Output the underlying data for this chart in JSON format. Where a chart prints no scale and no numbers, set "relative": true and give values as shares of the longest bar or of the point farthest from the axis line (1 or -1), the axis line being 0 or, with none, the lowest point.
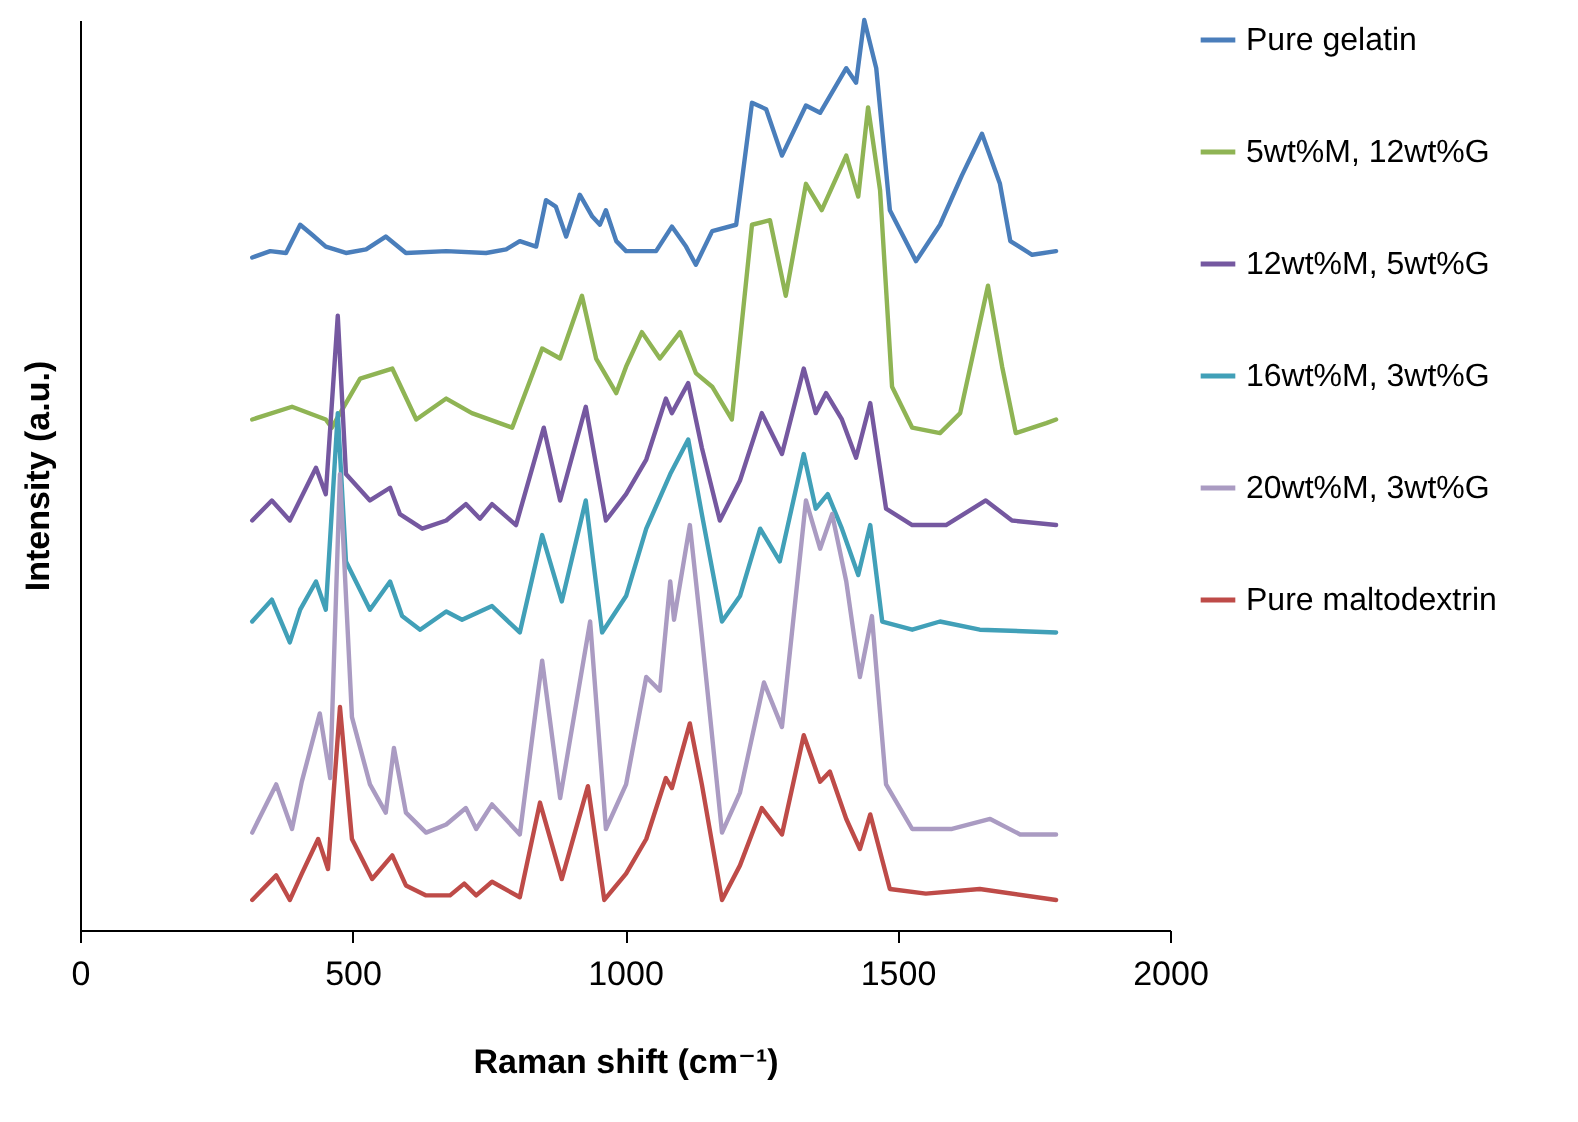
{
  "chart_data": {
    "type": "line",
    "relative": true,
    "xlabel": "Raman shift (cm⁻¹)",
    "ylabel": "Intensity (a.u.)",
    "xlim": [
      0,
      2000
    ],
    "xticks": [
      0,
      500,
      1000,
      1500,
      2000
    ],
    "legend": "right",
    "series": [
      {
        "name": "Pure gelatin",
        "color": "#4a7ebb",
        "x": [
          316,
          349,
          378,
          404,
          426,
          451,
          488,
          525,
          561,
          598,
          672,
          745,
          782,
          807,
          837,
          855,
          873,
          892,
          917,
          940,
          954,
          965,
          984,
          1002,
          1057,
          1086,
          1112,
          1130,
          1160,
          1204,
          1233,
          1259,
          1288,
          1332,
          1358,
          1406,
          1424,
          1439,
          1461,
          1486,
          1534,
          1578,
          1618,
          1655,
          1688,
          1707,
          1747,
          1791
        ],
        "values": [
          0.739,
          0.746,
          0.744,
          0.775,
          0.764,
          0.751,
          0.744,
          0.748,
          0.762,
          0.744,
          0.746,
          0.744,
          0.748,
          0.757,
          0.751,
          0.802,
          0.795,
          0.762,
          0.808,
          0.784,
          0.775,
          0.791,
          0.757,
          0.746,
          0.746,
          0.773,
          0.751,
          0.731,
          0.768,
          0.775,
          0.909,
          0.902,
          0.851,
          0.906,
          0.898,
          0.947,
          0.931,
          1,
          0.947,
          0.791,
          0.735,
          0.775,
          0.829,
          0.875,
          0.82,
          0.757,
          0.742,
          0.746
        ]
      },
      {
        "name": "5wt%M, 12wt%G",
        "color": "#8fb454",
        "x": [
          316,
          389,
          451,
          462,
          514,
          573,
          617,
          672,
          719,
          793,
          848,
          881,
          921,
          947,
          984,
          1002,
          1031,
          1064,
          1101,
          1130,
          1160,
          1196,
          1233,
          1266,
          1295,
          1332,
          1361,
          1406,
          1428,
          1446,
          1468,
          1490,
          1527,
          1578,
          1615,
          1666,
          1692,
          1717,
          1773,
          1791
        ],
        "values": [
          0.561,
          0.575,
          0.561,
          0.552,
          0.606,
          0.617,
          0.561,
          0.584,
          0.568,
          0.552,
          0.639,
          0.628,
          0.697,
          0.628,
          0.59,
          0.619,
          0.657,
          0.628,
          0.657,
          0.612,
          0.597,
          0.561,
          0.775,
          0.78,
          0.697,
          0.82,
          0.791,
          0.851,
          0.806,
          0.904,
          0.813,
          0.597,
          0.552,
          0.546,
          0.568,
          0.708,
          0.619,
          0.546,
          0.557,
          0.561
        ]
      },
      {
        "name": "12wt%M, 5wt%G",
        "color": "#7558a0",
        "x": [
          316,
          352,
          385,
          433,
          451,
          473,
          488,
          532,
          569,
          587,
          628,
          672,
          708,
          734,
          756,
          800,
          851,
          881,
          928,
          965,
          1002,
          1039,
          1075,
          1086,
          1116,
          1141,
          1174,
          1211,
          1251,
          1288,
          1328,
          1350,
          1369,
          1398,
          1424,
          1450,
          1479,
          1527,
          1589,
          1662,
          1710,
          1791
        ],
        "values": [
          0.45,
          0.472,
          0.45,
          0.508,
          0.479,
          0.675,
          0.501,
          0.472,
          0.486,
          0.457,
          0.441,
          0.45,
          0.468,
          0.452,
          0.468,
          0.445,
          0.552,
          0.472,
          0.575,
          0.45,
          0.479,
          0.517,
          0.584,
          0.568,
          0.601,
          0.53,
          0.45,
          0.494,
          0.568,
          0.523,
          0.617,
          0.568,
          0.59,
          0.561,
          0.519,
          0.579,
          0.463,
          0.445,
          0.445,
          0.472,
          0.45,
          0.445
        ]
      },
      {
        "name": "16wt%M, 3wt%G",
        "color": "#41a0b8",
        "x": [
          316,
          352,
          385,
          404,
          433,
          451,
          473,
          488,
          532,
          569,
          591,
          624,
          672,
          701,
          756,
          807,
          848,
          884,
          928,
          958,
          1002,
          1039,
          1083,
          1116,
          1141,
          1178,
          1211,
          1248,
          1284,
          1328,
          1350,
          1372,
          1398,
          1428,
          1450,
          1472,
          1527,
          1578,
          1651,
          1791
        ],
        "values": [
          0.339,
          0.363,
          0.316,
          0.352,
          0.383,
          0.352,
          0.568,
          0.405,
          0.352,
          0.383,
          0.345,
          0.33,
          0.35,
          0.341,
          0.356,
          0.327,
          0.434,
          0.361,
          0.472,
          0.327,
          0.367,
          0.441,
          0.501,
          0.539,
          0.457,
          0.339,
          0.367,
          0.441,
          0.405,
          0.523,
          0.463,
          0.479,
          0.441,
          0.39,
          0.445,
          0.339,
          0.33,
          0.339,
          0.33,
          0.327
        ]
      },
      {
        "name": "20wt%M, 3wt%G",
        "color": "#aa9bc2",
        "x": [
          316,
          360,
          389,
          407,
          440,
          459,
          477,
          499,
          532,
          561,
          576,
          598,
          635,
          672,
          708,
          727,
          756,
          807,
          848,
          881,
          936,
          965,
          1002,
          1039,
          1064,
          1083,
          1090,
          1119,
          1141,
          1178,
          1211,
          1255,
          1288,
          1332,
          1358,
          1380,
          1406,
          1431,
          1453,
          1479,
          1527,
          1600,
          1670,
          1725,
          1791
        ],
        "values": [
          0.107,
          0.16,
          0.111,
          0.163,
          0.238,
          0.167,
          0.501,
          0.234,
          0.16,
          0.129,
          0.2,
          0.129,
          0.107,
          0.116,
          0.134,
          0.111,
          0.138,
          0.105,
          0.296,
          0.145,
          0.339,
          0.111,
          0.16,
          0.278,
          0.263,
          0.383,
          0.341,
          0.445,
          0.323,
          0.107,
          0.151,
          0.272,
          0.223,
          0.472,
          0.419,
          0.457,
          0.383,
          0.278,
          0.345,
          0.16,
          0.111,
          0.111,
          0.122,
          0.105,
          0.105
        ]
      },
      {
        "name": "Pure maltodextrin",
        "color": "#be4b48",
        "x": [
          316,
          360,
          385,
          407,
          437,
          455,
          477,
          499,
          536,
          573,
          598,
          635,
          679,
          705,
          727,
          756,
          807,
          844,
          884,
          932,
          962,
          1002,
          1039,
          1075,
          1086,
          1119,
          1141,
          1178,
          1211,
          1251,
          1288,
          1328,
          1358,
          1376,
          1406,
          1431,
          1450,
          1486,
          1552,
          1651,
          1791
        ],
        "values": [
          0.033,
          0.06,
          0.033,
          0.062,
          0.1,
          0.067,
          0.245,
          0.1,
          0.056,
          0.082,
          0.049,
          0.038,
          0.038,
          0.051,
          0.038,
          0.053,
          0.036,
          0.14,
          0.056,
          0.158,
          0.033,
          0.062,
          0.1,
          0.167,
          0.156,
          0.227,
          0.16,
          0.033,
          0.071,
          0.134,
          0.105,
          0.214,
          0.163,
          0.174,
          0.122,
          0.089,
          0.127,
          0.045,
          0.04,
          0.045,
          0.033
        ]
      }
    ]
  }
}
